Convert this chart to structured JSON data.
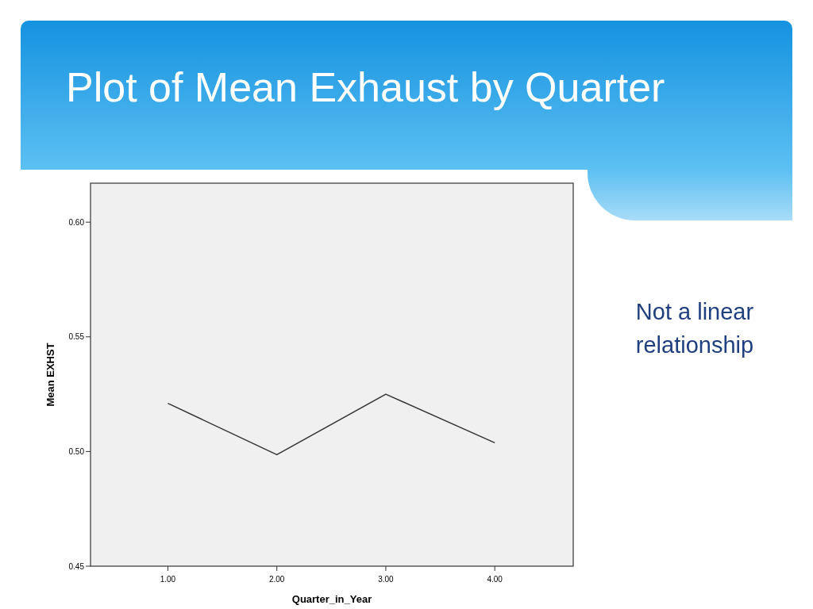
{
  "chart_data": {
    "type": "line",
    "title": "Plot of Mean Exhaust by Quarter",
    "xlabel": "Quarter_in_Year",
    "ylabel": "Mean EXHST",
    "annotations": [
      "Not a linear relationship"
    ],
    "x": [
      1,
      2,
      3,
      4
    ],
    "series": [
      {
        "color": "#333333",
        "values": [
          0.521,
          0.4986,
          0.525,
          0.5038
        ]
      }
    ],
    "xlim": [
      0.29,
      4.72
    ],
    "xticks": [
      {
        "value": 1,
        "label": "1.00"
      },
      {
        "value": 2,
        "label": "2.00"
      },
      {
        "value": 3,
        "label": "3.00"
      },
      {
        "value": 4,
        "label": "4.00"
      }
    ],
    "ylim": [
      0.45,
      0.617
    ],
    "yticks": [
      {
        "value": 0.45,
        "label": "0.45"
      },
      {
        "value": 0.5,
        "label": "0.50"
      },
      {
        "value": 0.55,
        "label": "0.55"
      },
      {
        "value": 0.6,
        "label": "0.60"
      }
    ],
    "grid": false,
    "marker": "none",
    "line_style": "solid"
  }
}
